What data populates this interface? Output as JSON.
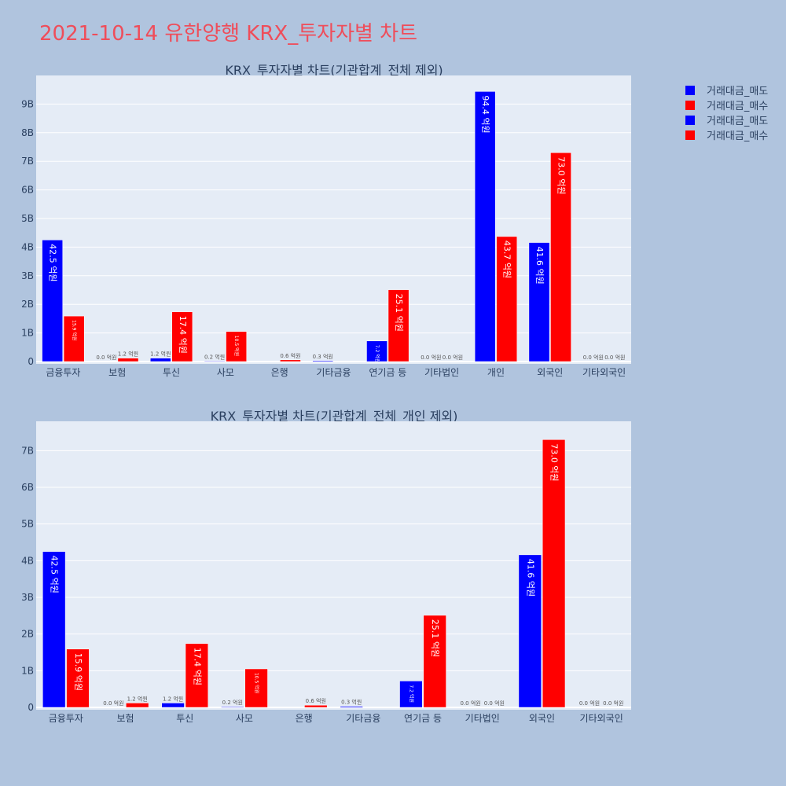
{
  "page": {
    "title": "2021-10-14 유한양행 KRX_투자자별 차트"
  },
  "legend": [
    {
      "label": "거래대금_매도",
      "color": "#0000ff"
    },
    {
      "label": "거래대금_매수",
      "color": "#ff0000"
    },
    {
      "label": "거래대금_매도",
      "color": "#0000ff"
    },
    {
      "label": "거래대금_매수",
      "color": "#ff0000"
    }
  ],
  "chart_data": [
    {
      "type": "bar",
      "title": "KRX_투자자별 차트(기관합계_전체 제외)",
      "categories": [
        "금융투자",
        "보험",
        "투신",
        "사모",
        "은행",
        "기타금융",
        "연기금 등",
        "기타법인",
        "개인",
        "외국인",
        "기타외국인"
      ],
      "ylim": [
        0,
        10
      ],
      "yticks": [
        0,
        1,
        2,
        3,
        4,
        5,
        6,
        7,
        8,
        9
      ],
      "ytick_labels": [
        "0",
        "1B",
        "2B",
        "3B",
        "4B",
        "5B",
        "6B",
        "7B",
        "8B",
        "9B"
      ],
      "grid": true,
      "series": [
        {
          "name": "거래대금_매도",
          "color": "#0000ff",
          "values": [
            4.25,
            0.0,
            0.12,
            0.02,
            null,
            0.03,
            0.72,
            0.0,
            9.44,
            4.16,
            0.0
          ],
          "labels": [
            "42.5 억원",
            "0.0 억원",
            "1.2 억원",
            "0.2 억원",
            "",
            "0.3 억원",
            "7.2 억원",
            "0.0 억원",
            "94.4 억원",
            "41.6 억원",
            "0.0 억원"
          ]
        },
        {
          "name": "거래대금_매수",
          "color": "#ff0000",
          "values": [
            1.59,
            0.12,
            1.74,
            1.05,
            0.06,
            null,
            2.51,
            0.0,
            4.37,
            7.3,
            0.0
          ],
          "labels": [
            "15.9 억원",
            "1.2 억원",
            "17.4 억원",
            "10.5 억원",
            "0.6 억원",
            "",
            "25.1 억원",
            "0.0 억원",
            "43.7 억원",
            "73.0 억원",
            "0.0 억원"
          ]
        }
      ]
    },
    {
      "type": "bar",
      "title": "KRX_투자자별 차트(기관합계_전체_개인 제외)",
      "categories": [
        "금융투자",
        "보험",
        "투신",
        "사모",
        "은행",
        "기타금융",
        "연기금 등",
        "기타법인",
        "외국인",
        "기타외국인"
      ],
      "ylim": [
        0,
        7.8
      ],
      "yticks": [
        0,
        1,
        2,
        3,
        4,
        5,
        6,
        7
      ],
      "ytick_labels": [
        "0",
        "1B",
        "2B",
        "3B",
        "4B",
        "5B",
        "6B",
        "7B"
      ],
      "grid": true,
      "series": [
        {
          "name": "거래대금_매도",
          "color": "#0000ff",
          "values": [
            4.25,
            0.0,
            0.12,
            0.02,
            null,
            0.03,
            0.72,
            0.0,
            4.16,
            0.0
          ],
          "labels": [
            "42.5 억원",
            "0.0 억원",
            "1.2 억원",
            "0.2 억원",
            "",
            "0.3 억원",
            "7.2 억원",
            "0.0 억원",
            "41.6 억원",
            "0.0 억원"
          ]
        },
        {
          "name": "거래대금_매수",
          "color": "#ff0000",
          "values": [
            1.59,
            0.12,
            1.74,
            1.05,
            0.06,
            null,
            2.51,
            0.0,
            7.3,
            0.0
          ],
          "labels": [
            "15.9 억원",
            "1.2 억원",
            "17.4 억원",
            "10.5 억원",
            "0.6 억원",
            "",
            "25.1 억원",
            "0.0 억원",
            "73.0 억원",
            "0.0 억원"
          ]
        }
      ]
    }
  ]
}
